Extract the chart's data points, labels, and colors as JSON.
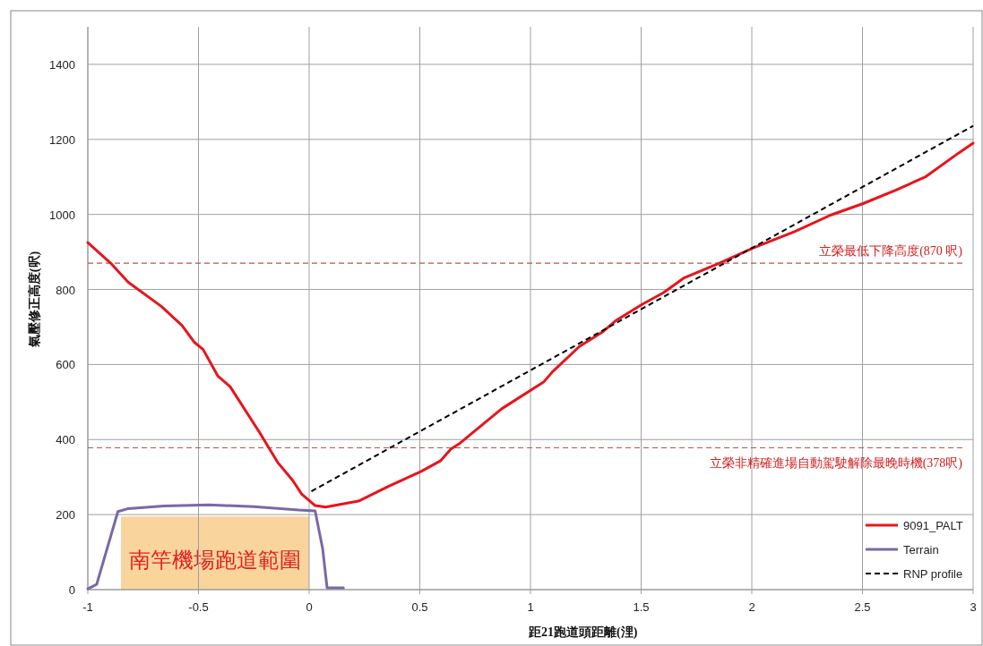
{
  "chart_data": {
    "type": "line",
    "xlabel": "距21跑道頭距離(浬)",
    "ylabel": "氣壓修正高度(呎)",
    "xlim": [
      -1,
      3
    ],
    "ylim": [
      0,
      1500
    ],
    "xticks": [
      -1,
      -0.5,
      0,
      0.5,
      1,
      1.5,
      2,
      2.5,
      3
    ],
    "yticks": [
      0,
      200,
      400,
      600,
      800,
      1000,
      1200,
      1400
    ],
    "grid": true,
    "legend": "bottom right",
    "series": [
      {
        "name": "9091_PALT",
        "color": "#e8141c",
        "line_style": "solid",
        "x": [
          -1,
          -0.898,
          -0.817,
          -0.668,
          -0.574,
          -0.52,
          -0.479,
          -0.412,
          -0.357,
          -0.223,
          -0.142,
          -0.074,
          -0.034,
          0.027,
          0.074,
          0.223,
          0.358,
          0.506,
          0.593,
          0.641,
          0.681,
          0.87,
          1.059,
          1.1,
          1.221,
          1.329,
          1.383,
          1.504,
          1.6,
          1.694,
          1.856,
          2.004,
          2.193,
          2.355,
          2.503,
          2.652,
          2.787,
          2.935,
          3
        ],
        "values": [
          925,
          871,
          819,
          755,
          704,
          660,
          640,
          569,
          541,
          418,
          339,
          291,
          255,
          224,
          220,
          236,
          275,
          315,
          343,
          375,
          390,
          482,
          553,
          581,
          648,
          688,
          716,
          760,
          791,
          831,
          871,
          910,
          954,
          998,
          1029,
          1065,
          1101,
          1164,
          1190
        ]
      },
      {
        "name": "Terrain",
        "color": "#7b68a6",
        "line_style": "solid",
        "x": [
          -1,
          -0.96,
          -0.864,
          -0.817,
          -0.656,
          -0.452,
          -0.25,
          -0.047,
          0.027,
          0.061,
          0.081,
          0.155
        ],
        "values": [
          2,
          14,
          208,
          216,
          223,
          226,
          221,
          212,
          210,
          109,
          5,
          5
        ]
      },
      {
        "name": "RNP profile",
        "color": "#000000",
        "line_style": "dashed",
        "x": [
          0.01,
          3
        ],
        "values": [
          262,
          1236
        ]
      }
    ],
    "ref_lines": [
      {
        "axis": "y",
        "value": 870,
        "label": "立榮最低下降高度(870 呎)",
        "color": "#c0504d",
        "line_style": "dashed"
      },
      {
        "axis": "y",
        "value": 378,
        "label": "立榮非精確進場自動駕駛解除最晚時機(378呎)",
        "color": "#c0504d",
        "line_style": "dashed"
      }
    ],
    "bands": [
      {
        "axis": "x",
        "from": -0.85,
        "to": 0,
        "label": "南竿機場跑道範圍",
        "color": "#f9d49c"
      }
    ]
  }
}
